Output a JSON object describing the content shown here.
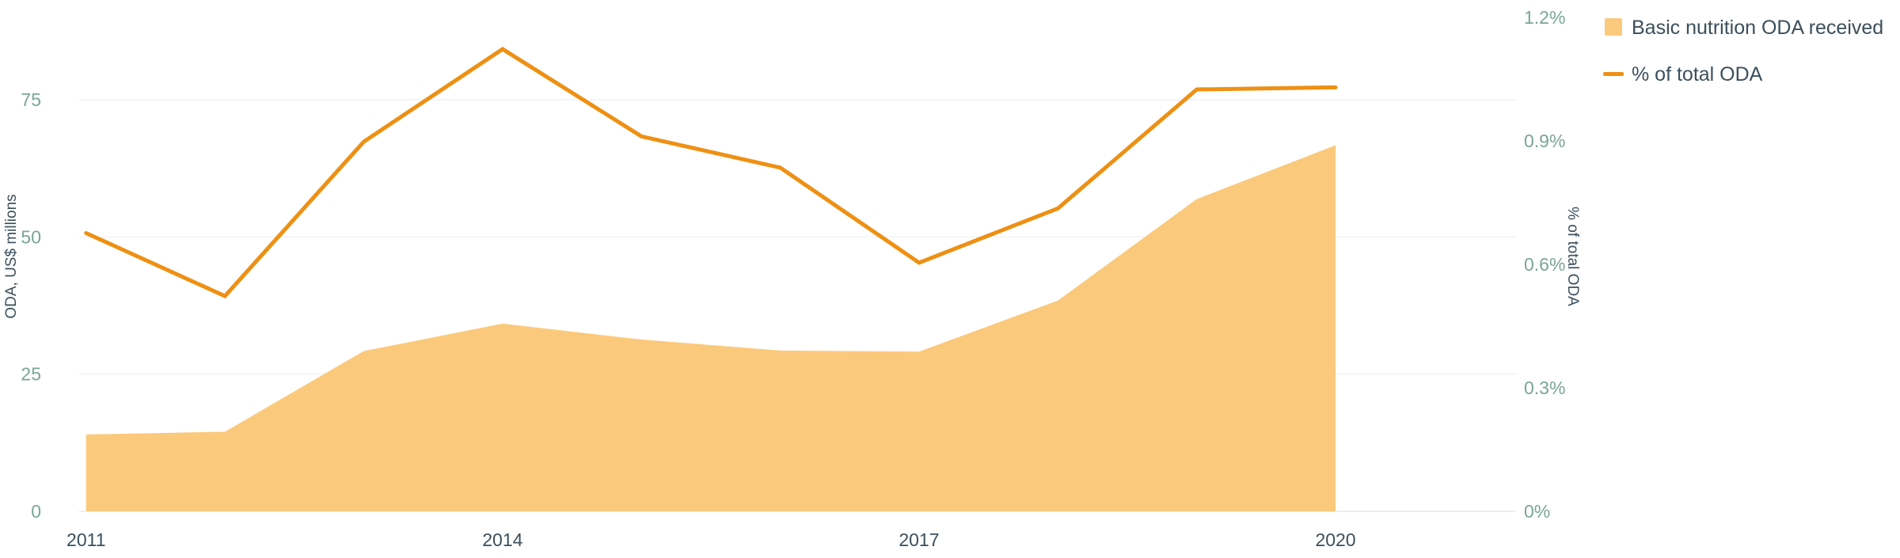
{
  "chart_data": {
    "type": "area",
    "x": [
      2011,
      2012,
      2013,
      2014,
      2015,
      2016,
      2017,
      2018,
      2019,
      2020
    ],
    "x_tick_labels": [
      "2011",
      "2014",
      "2017",
      "2020"
    ],
    "x_tick_values": [
      2011,
      2014,
      2017,
      2020
    ],
    "series": [
      {
        "name": "Basic nutrition ODA received",
        "type": "area",
        "axis": "left",
        "values": [
          14,
          14.5,
          29.2,
          34.2,
          31.3,
          29.3,
          29.1,
          38.4,
          56.9,
          66.7
        ]
      },
      {
        "name": "% of total ODA",
        "type": "line",
        "axis": "right",
        "values": [
          0.676,
          0.523,
          0.898,
          1.123,
          0.911,
          0.835,
          0.604,
          0.736,
          1.025,
          1.03
        ]
      }
    ],
    "ylabel": "ODA, US$ millions",
    "y2label": "% of total ODA",
    "ylim": [
      0,
      90
    ],
    "y2lim": [
      0,
      1.2
    ],
    "y_tick_values": [
      0,
      25,
      50,
      75
    ],
    "y_tick_labels": [
      "0",
      "25",
      "50",
      "75"
    ],
    "y2_tick_values": [
      0,
      0.3,
      0.6,
      0.9,
      1.2
    ],
    "y2_tick_labels": [
      "0%",
      "0.3%",
      "0.6%",
      "0.9%",
      "1.2%"
    ],
    "grid": true,
    "legend_position": "top-right",
    "colors": {
      "area": "#fbc97b",
      "line": "#ee9013",
      "axis_text_left": "#7aa693",
      "axis_text_right": "#7aa693",
      "x_tick_text": "#3b4f5c",
      "axis_title": "#3b4f5c",
      "legend_text": "#3b4f5c",
      "grid": "#eeeeee",
      "baseline": "#dddddd"
    }
  }
}
